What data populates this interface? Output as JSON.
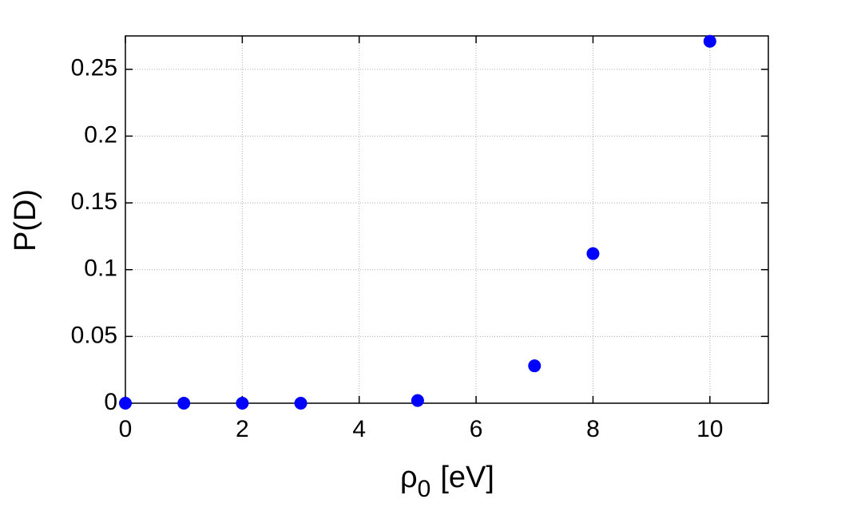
{
  "chart_data": {
    "type": "scatter",
    "xlabel_parts": [
      "ρ",
      "0",
      "[eV]"
    ],
    "ylabel": "P(D)",
    "x": [
      0,
      1,
      2,
      3,
      5,
      7,
      8,
      10
    ],
    "values": [
      0,
      0,
      0,
      0,
      0.002,
      0.028,
      0.112,
      0.271
    ],
    "color": "#0000ff",
    "xlim": [
      0,
      11
    ],
    "xticks": [
      0,
      2,
      4,
      6,
      8,
      10
    ],
    "ylim": [
      0,
      0.275
    ],
    "yticks": [
      0,
      0.05,
      0.1,
      0.15,
      0.2,
      0.25
    ],
    "grid": true
  }
}
